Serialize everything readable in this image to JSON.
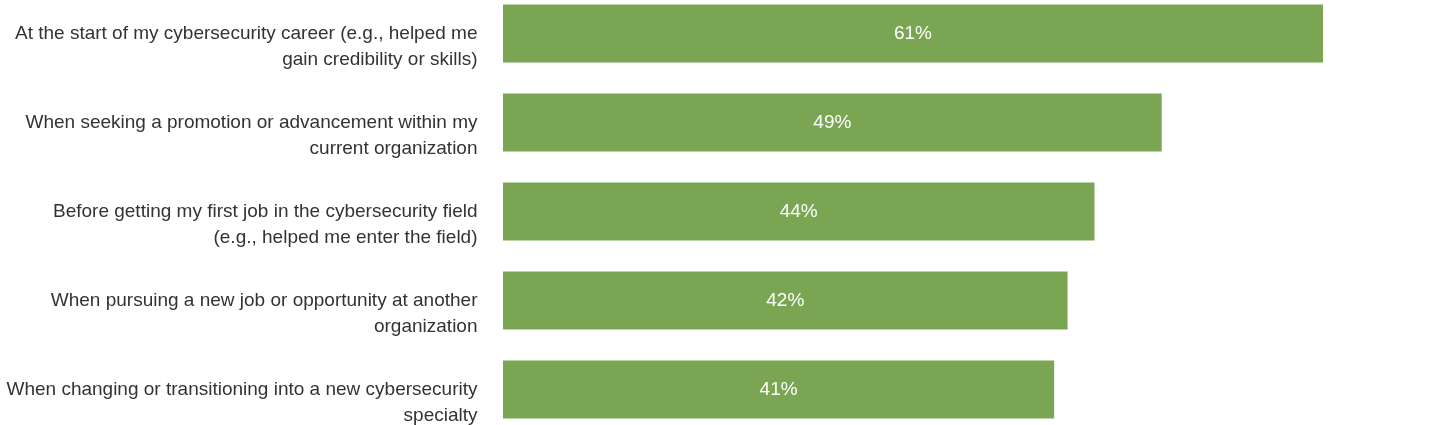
{
  "chart_data": {
    "type": "bar",
    "orientation": "horizontal",
    "categories": [
      "At the start of my cybersecurity career (e.g., helped me gain credibility or skills)",
      "When seeking a promotion or advancement within my current organization",
      "Before getting my first job in the cybersecurity field (e.g., helped me enter the field)",
      "When pursuing a new job or opportunity at another organization",
      "When changing or transitioning into a new cybersecurity specialty"
    ],
    "values": [
      61,
      49,
      44,
      42,
      41
    ],
    "value_labels": [
      "61%",
      "49%",
      "44%",
      "42%",
      "41%"
    ],
    "color": "#7aa653"
  }
}
